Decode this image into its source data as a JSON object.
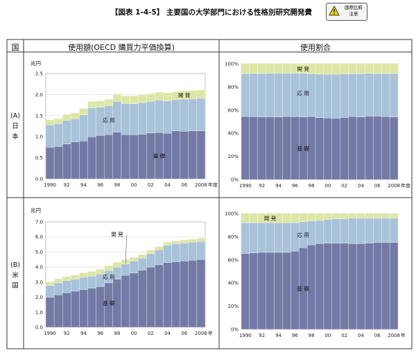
{
  "title": "【図表 1-4-5】 主要国の大学部門における性格別研究開発費",
  "badge": {
    "text": "国際比較\n注意",
    "warning_color": "#f2d600"
  },
  "table": {
    "header_country": "国",
    "header_amount": "使用額(OECD 購買力平価換算)",
    "header_share": "使用割合",
    "rows": [
      {
        "label_code": "(A)",
        "label_chars": [
          "日",
          "本"
        ]
      },
      {
        "label_code": "(B)",
        "label_chars": [
          "米",
          "国"
        ]
      }
    ]
  },
  "colors": {
    "basic": "#737aa6",
    "applied": "#a8c2d9",
    "development": "#dde6a5",
    "plot_bg": "#ffffff",
    "grid": "#888888"
  },
  "chart_data": [
    {
      "id": "japan_amount",
      "type": "bar",
      "stacked": true,
      "unit": "兆円",
      "xlabel": "年度",
      "ylim": [
        0,
        2.5
      ],
      "yticks": [
        "0.0",
        "0.5",
        "1.0",
        "1.5",
        "2.0",
        "2.5"
      ],
      "years": [
        1990,
        1991,
        1992,
        1993,
        1994,
        1995,
        1996,
        1997,
        1998,
        1999,
        2000,
        2001,
        2002,
        2003,
        2004,
        2005,
        2006,
        2007,
        2008
      ],
      "xtick_labels": [
        "1990",
        "92",
        "94",
        "96",
        "98",
        "00",
        "02",
        "04",
        "06",
        "2008"
      ],
      "series": [
        {
          "name": "基 礎",
          "key": "basic",
          "values": [
            0.75,
            0.77,
            0.83,
            0.88,
            0.9,
            1.0,
            1.03,
            1.05,
            1.11,
            1.05,
            1.05,
            1.06,
            1.09,
            1.1,
            1.08,
            1.14,
            1.13,
            1.14,
            1.14
          ]
        },
        {
          "name": "応 用",
          "key": "applied",
          "values": [
            0.53,
            0.54,
            0.56,
            0.55,
            0.62,
            0.68,
            0.67,
            0.69,
            0.73,
            0.74,
            0.73,
            0.75,
            0.75,
            0.77,
            0.77,
            0.74,
            0.76,
            0.76,
            0.77
          ]
        },
        {
          "name": "開 発",
          "key": "development",
          "values": [
            0.12,
            0.12,
            0.14,
            0.14,
            0.15,
            0.16,
            0.15,
            0.15,
            0.17,
            0.18,
            0.19,
            0.18,
            0.18,
            0.19,
            0.19,
            0.19,
            0.2,
            0.2,
            0.2
          ]
        }
      ]
    },
    {
      "id": "japan_share",
      "type": "bar",
      "stacked": true,
      "percent": true,
      "xlabel": "年度",
      "ylim": [
        0,
        100
      ],
      "yticks": [
        "0%",
        "20%",
        "40%",
        "60%",
        "80%",
        "100%"
      ],
      "years": [
        1990,
        1991,
        1992,
        1993,
        1994,
        1995,
        1996,
        1997,
        1998,
        1999,
        2000,
        2001,
        2002,
        2003,
        2004,
        2005,
        2006,
        2007,
        2008
      ],
      "xtick_labels": [
        "1990",
        "92",
        "94",
        "96",
        "98",
        "00",
        "02",
        "04",
        "06",
        "2008"
      ],
      "series": [
        {
          "name": "基 礎",
          "key": "basic",
          "values": [
            54.5,
            54.3,
            54.0,
            54.2,
            54.0,
            54.5,
            54.4,
            54.0,
            54.5,
            53.5,
            53.2,
            53.0,
            53.6,
            54.5,
            54.0,
            54.8,
            54.8,
            54.4,
            54.0
          ]
        },
        {
          "name": "応 用",
          "key": "applied",
          "values": [
            37.0,
            37.4,
            37.6,
            37.6,
            37.8,
            37.3,
            37.4,
            37.7,
            37.0,
            37.6,
            37.8,
            38.0,
            37.6,
            37.0,
            37.5,
            37.0,
            36.8,
            37.2,
            37.6
          ]
        },
        {
          "name": "開 発",
          "key": "development",
          "values": [
            8.5,
            8.3,
            8.4,
            8.2,
            8.2,
            8.2,
            8.2,
            8.3,
            8.5,
            8.9,
            9.0,
            9.0,
            8.8,
            8.5,
            8.5,
            8.2,
            8.4,
            8.4,
            8.4
          ]
        }
      ]
    },
    {
      "id": "us_amount",
      "type": "bar",
      "stacked": true,
      "unit": "兆円",
      "xlabel": "年",
      "ylim": [
        0,
        7.0
      ],
      "yticks": [
        "0.0",
        "1.0",
        "2.0",
        "3.0",
        "4.0",
        "5.0",
        "6.0",
        "7.0"
      ],
      "years": [
        1990,
        1991,
        1992,
        1993,
        1994,
        1995,
        1996,
        1997,
        1998,
        1999,
        2000,
        2001,
        2002,
        2003,
        2004,
        2005,
        2006,
        2007,
        2008
      ],
      "xtick_labels": [
        "1990",
        "92",
        "94",
        "96",
        "98",
        "00",
        "02",
        "04",
        "06",
        "2008"
      ],
      "series": [
        {
          "name": "基 礎",
          "key": "basic",
          "values": [
            2.0,
            2.15,
            2.3,
            2.4,
            2.5,
            2.6,
            2.7,
            2.95,
            3.2,
            3.45,
            3.6,
            3.8,
            4.0,
            4.15,
            4.3,
            4.35,
            4.4,
            4.45,
            4.5
          ]
        },
        {
          "name": "応 用",
          "key": "applied",
          "values": [
            0.78,
            0.8,
            0.8,
            0.8,
            0.82,
            0.8,
            0.83,
            0.82,
            0.8,
            0.75,
            0.8,
            0.8,
            0.9,
            1.0,
            1.15,
            1.2,
            1.2,
            1.2,
            1.2
          ]
        },
        {
          "name": "開 発",
          "key": "development",
          "values": [
            0.25,
            0.27,
            0.27,
            0.28,
            0.3,
            0.32,
            0.32,
            0.33,
            0.32,
            0.3,
            0.25,
            0.23,
            0.22,
            0.2,
            0.2,
            0.2,
            0.2,
            0.2,
            0.22
          ]
        }
      ]
    },
    {
      "id": "us_share",
      "type": "bar",
      "stacked": true,
      "percent": true,
      "xlabel": "年",
      "ylim": [
        0,
        100
      ],
      "yticks": [
        "0%",
        "20%",
        "40%",
        "60%",
        "80%",
        "100%"
      ],
      "years": [
        1990,
        1991,
        1992,
        1993,
        1994,
        1995,
        1996,
        1997,
        1998,
        1999,
        2000,
        2001,
        2002,
        2003,
        2004,
        2005,
        2006,
        2007,
        2008
      ],
      "xtick_labels": [
        "1990",
        "92",
        "94",
        "96",
        "98",
        "00",
        "02",
        "04",
        "06",
        "2008"
      ],
      "series": [
        {
          "name": "基 礎",
          "key": "basic",
          "values": [
            65.5,
            66.0,
            66.5,
            66.5,
            66.5,
            66.5,
            67.5,
            70.5,
            73.0,
            74.0,
            74.5,
            74.5,
            74.5,
            74.0,
            74.0,
            74.5,
            75.0,
            75.0,
            75.0
          ]
        },
        {
          "name": "応 用",
          "key": "applied",
          "values": [
            26.5,
            26.0,
            25.5,
            25.5,
            25.5,
            25.5,
            24.5,
            22.5,
            20.5,
            20.0,
            20.5,
            21.0,
            21.0,
            22.0,
            22.0,
            21.5,
            21.0,
            21.0,
            21.0
          ]
        },
        {
          "name": "開 発",
          "key": "development",
          "values": [
            8.0,
            8.0,
            8.0,
            8.0,
            8.0,
            8.0,
            8.0,
            7.0,
            6.5,
            6.0,
            5.0,
            4.5,
            4.5,
            4.0,
            4.0,
            4.0,
            4.0,
            4.0,
            4.0
          ]
        }
      ]
    }
  ]
}
